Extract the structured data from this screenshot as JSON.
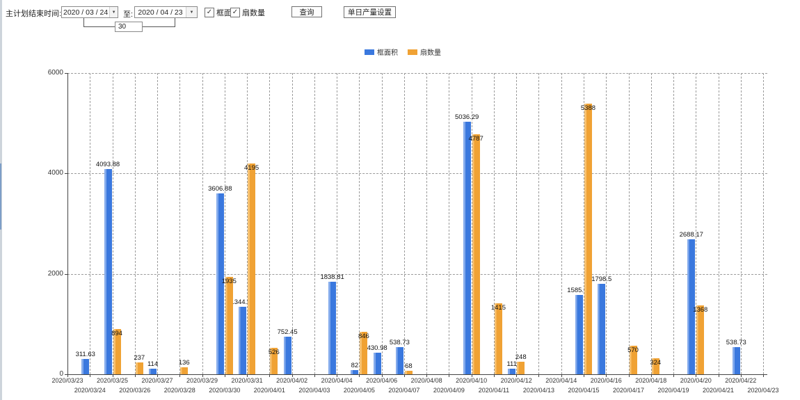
{
  "icons": {
    "dropdown_arrow": "▼",
    "checkmark": "✓"
  },
  "toolbar": {
    "end_time_label": "主计划结束时间:",
    "date_from": "2020 / 03 / 24",
    "to_label": "至:",
    "date_to": "2020 / 04 / 23",
    "interval_value": "30",
    "checkboxes": [
      {
        "label": "框面积",
        "checked": true
      },
      {
        "label": "扇数量",
        "checked": true
      }
    ],
    "query_button": "查询",
    "daily_output_button": "单日产量设置"
  },
  "legend": [
    {
      "label": "框面积",
      "color": "#3a78de"
    },
    {
      "label": "扇数量",
      "color": "#f0a234"
    }
  ],
  "chart_data": {
    "type": "bar",
    "title": "",
    "xlabel": "",
    "ylabel": "",
    "ylim": [
      0,
      6000
    ],
    "yticks": [
      0,
      2000,
      4000,
      6000
    ],
    "grid": "dashed",
    "legend_position": "top-center",
    "categories": [
      "2020/03/23",
      "2020/03/24",
      "2020/03/25",
      "2020/03/26",
      "2020/03/27",
      "2020/03/28",
      "2020/03/29",
      "2020/03/30",
      "2020/03/31",
      "2020/04/01",
      "2020/04/02",
      "2020/04/03",
      "2020/04/04",
      "2020/04/05",
      "2020/04/06",
      "2020/04/07",
      "2020/04/08",
      "2020/04/09",
      "2020/04/10",
      "2020/04/11",
      "2020/04/12",
      "2020/04/13",
      "2020/04/14",
      "2020/04/15",
      "2020/04/16",
      "2020/04/17",
      "2020/04/18",
      "2020/04/19",
      "2020/04/20",
      "2020/04/21",
      "2020/04/22",
      "2020/04/23"
    ],
    "series": [
      {
        "name": "框面积",
        "color": "#3a78de",
        "values": [
          null,
          311.63,
          4093.88,
          null,
          114,
          null,
          null,
          3606.88,
          1344.95,
          null,
          752.45,
          null,
          1838.81,
          82,
          430.98,
          538.73,
          null,
          null,
          5036.29,
          null,
          111,
          null,
          null,
          1585.96,
          1798.5,
          null,
          null,
          null,
          2688.17,
          null,
          538.73,
          null
        ]
      },
      {
        "name": "扇数量",
        "color": "#f0a234",
        "values": [
          null,
          null,
          894,
          237,
          null,
          136,
          null,
          1935,
          4195,
          526,
          null,
          null,
          null,
          846,
          null,
          68,
          null,
          null,
          4787,
          1415,
          248,
          null,
          null,
          5388,
          null,
          570,
          324,
          null,
          1368,
          null,
          null,
          null
        ]
      }
    ]
  }
}
